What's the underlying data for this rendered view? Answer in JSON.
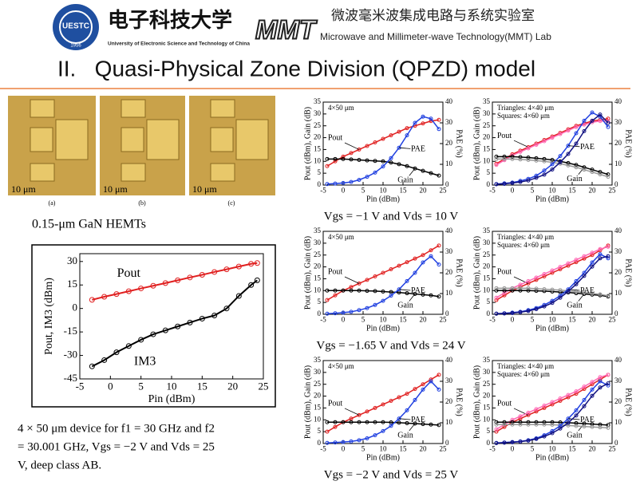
{
  "header": {
    "logo_text": "UESTC",
    "logo_year": "1956",
    "university_cn": "电子科技大学",
    "university_en": "University of Electronic Science and Technology of China",
    "lab_logo": "MMT",
    "lab_cn": "微波毫米波集成电路与系统实验室",
    "lab_en": "Microwave and Millimeter-wave Technology(MMT) Lab"
  },
  "title": "II.   Quasi-Physical Zone Division (QPZD) model",
  "micrographs": [
    {
      "label": "(a)",
      "scale": "10 μm"
    },
    {
      "label": "(b)",
      "scale": "10 μm"
    },
    {
      "label": "(c)",
      "scale": "10 μm"
    }
  ],
  "device_label": "0.15-μm GaN HEMTs",
  "device_note": [
    "4 × 50 μm device for f1 = 30 GHz and f2",
    "= 30.001 GHz, Vgs = −2 V and Vds = 25",
    "V, deep class AB."
  ],
  "bias_captions": [
    "Vgs = −1 V and Vds = 10 V",
    "Vgs = −1.65 V and Vds = 24 V",
    "Vgs = −2 V and Vds = 25 V"
  ],
  "chart_data": [
    {
      "type": "line",
      "xlabel": "Pin (dBm)",
      "ylabel": "Pout, IM3 (dBm)",
      "markers": true,
      "x": [
        -3,
        -1,
        1,
        3,
        5,
        7,
        9,
        11,
        13,
        15,
        17,
        19,
        21,
        23,
        24
      ],
      "xlim": [
        -5,
        25
      ],
      "xticks": [
        -5,
        0,
        5,
        10,
        15,
        20,
        25
      ],
      "ylim": [
        -45,
        35
      ],
      "yticks": [
        -45,
        -30,
        -15,
        0,
        15,
        30
      ],
      "series": [
        {
          "name": "Pout",
          "color": "#e02020",
          "values": [
            5.5,
            7.5,
            9.2,
            11,
            12.8,
            14.5,
            16.2,
            18,
            19.8,
            21.5,
            23.3,
            25,
            26.8,
            28.5,
            29
          ]
        },
        {
          "name": "IM3",
          "color": "#000000",
          "values": [
            -37,
            -33,
            -28,
            -24,
            -20,
            -16.5,
            -14,
            -11.5,
            -9,
            -6.5,
            -4.5,
            0,
            8,
            15,
            18
          ]
        }
      ]
    },
    {
      "type": "line",
      "xlabel": "Pin (dBm)",
      "ylabel": "Pout (dBm), Gain (dB)",
      "y2label": "PAE (%)",
      "markers": true,
      "size_notes": [
        "4×50 μm"
      ],
      "x": [
        -4,
        -2,
        0,
        2,
        4,
        6,
        8,
        10,
        12,
        14,
        16,
        18,
        20,
        22,
        24
      ],
      "xlim": [
        -5,
        25
      ],
      "xticks": [
        -5,
        0,
        5,
        10,
        15,
        20,
        25
      ],
      "ylim": [
        0,
        35
      ],
      "yticks": [
        0,
        5,
        10,
        15,
        20,
        25,
        30,
        35
      ],
      "y2lim": [
        0,
        40
      ],
      "y2ticks": [
        0,
        10,
        20,
        30,
        40
      ],
      "series": [
        {
          "name": "Pout",
          "color": "#e02020",
          "values": [
            8,
            10,
            12,
            13.5,
            15,
            16.5,
            18,
            19.5,
            21,
            22.5,
            24,
            25,
            26,
            27,
            27.5
          ]
        },
        {
          "name": "Gain",
          "color": "#000000",
          "values": [
            11,
            11,
            11,
            10.8,
            10.6,
            10.4,
            10.2,
            10,
            9.5,
            8.8,
            8,
            7,
            6,
            5,
            4
          ]
        },
        {
          "name": "PAE",
          "color": "#2040e0",
          "axis": "y2",
          "values": [
            0.5,
            0.7,
            1,
            1.5,
            2.5,
            4,
            6,
            9,
            13,
            18,
            24,
            30,
            33,
            32,
            27
          ]
        }
      ]
    },
    {
      "type": "line",
      "xlabel": "Pin (dBm)",
      "ylabel": "Pout (dBm), Gain (dB)",
      "y2label": "PAE (%)",
      "markers": true,
      "size_notes": [
        "Triangles: 4×40 μm",
        "Squares: 4×60 μm"
      ],
      "x": [
        -4,
        -2,
        0,
        2,
        4,
        6,
        8,
        10,
        12,
        14,
        16,
        18,
        20,
        22,
        24
      ],
      "xlim": [
        -5,
        25
      ],
      "xticks": [
        -5,
        0,
        5,
        10,
        15,
        20,
        25
      ],
      "ylim": [
        0,
        35
      ],
      "yticks": [
        0,
        5,
        10,
        15,
        20,
        25,
        30,
        35
      ],
      "y2lim": [
        0,
        40
      ],
      "y2ticks": [
        0,
        10,
        20,
        30,
        40
      ],
      "series": [
        {
          "name": "Pout",
          "color": "#e02020",
          "values": [
            9,
            11,
            13,
            14.5,
            16,
            17.5,
            19,
            20.5,
            22,
            23.5,
            25,
            26,
            27,
            27.5,
            28
          ]
        },
        {
          "color": "#ff69b4",
          "values": [
            8.5,
            10.5,
            12.5,
            14,
            15.5,
            17,
            18.5,
            20,
            21.5,
            23,
            24.5,
            25.5,
            26.5,
            27,
            27
          ]
        },
        {
          "name": "Gain",
          "color": "#000000",
          "values": [
            12,
            12,
            12,
            11.8,
            11.6,
            11.3,
            11,
            10.6,
            10,
            9.3,
            8.5,
            7.5,
            6.5,
            5.5,
            4.5
          ]
        },
        {
          "color": "#999999",
          "values": [
            11,
            11,
            11,
            10.8,
            10.6,
            10.3,
            10,
            9.6,
            9,
            8.3,
            7.5,
            6.5,
            5.5,
            4.5,
            3.5
          ]
        },
        {
          "name": "PAE",
          "color": "#2040e0",
          "axis": "y2",
          "values": [
            0.5,
            0.8,
            1.2,
            2,
            3,
            4.5,
            7,
            10,
            14,
            19,
            25,
            31,
            35,
            33,
            28
          ]
        },
        {
          "color": "#101080",
          "axis": "y2",
          "values": [
            0.4,
            0.6,
            1,
            1.5,
            2.2,
            3.5,
            5,
            7.5,
            11,
            15,
            20,
            26,
            31,
            34,
            30
          ]
        }
      ]
    },
    {
      "type": "line",
      "xlabel": "Pin (dBm)",
      "ylabel": "Pout (dBm), Gain (dB)",
      "y2label": "PAE (%)",
      "markers": true,
      "size_notes": [
        "4×50 μm"
      ],
      "x": [
        -4,
        -2,
        0,
        2,
        4,
        6,
        8,
        10,
        12,
        14,
        16,
        18,
        20,
        22,
        24
      ],
      "xlim": [
        -5,
        25
      ],
      "xticks": [
        -5,
        0,
        5,
        10,
        15,
        20,
        25
      ],
      "ylim": [
        0,
        35
      ],
      "yticks": [
        0,
        5,
        10,
        15,
        20,
        25,
        30,
        35
      ],
      "y2lim": [
        0,
        40
      ],
      "y2ticks": [
        0,
        10,
        20,
        30,
        40
      ],
      "series": [
        {
          "name": "Pout",
          "color": "#e02020",
          "values": [
            6,
            8,
            10,
            11.5,
            13,
            14.5,
            16,
            17.5,
            19,
            20.5,
            22,
            23.5,
            25,
            27,
            29
          ]
        },
        {
          "name": "Gain",
          "color": "#000000",
          "values": [
            10,
            10,
            10,
            10,
            10,
            9.9,
            9.8,
            9.6,
            9.4,
            9.2,
            8.9,
            8.6,
            8.3,
            8,
            7.5
          ]
        },
        {
          "name": "PAE",
          "color": "#2040e0",
          "axis": "y2",
          "values": [
            0.3,
            0.5,
            0.8,
            1.2,
            2,
            3,
            4.5,
            6.5,
            9,
            12,
            16,
            20,
            25,
            28,
            24
          ]
        }
      ]
    },
    {
      "type": "line",
      "xlabel": "Pin (dBm)",
      "ylabel": "Pout (dBm), Gain (dB)",
      "y2label": "PAE (%)",
      "markers": true,
      "size_notes": [
        "Triangles: 4×40 μm",
        "Squares: 4×60 μm"
      ],
      "x": [
        -4,
        -2,
        0,
        2,
        4,
        6,
        8,
        10,
        12,
        14,
        16,
        18,
        20,
        22,
        24
      ],
      "xlim": [
        -5,
        25
      ],
      "xticks": [
        -5,
        0,
        5,
        10,
        15,
        20,
        25
      ],
      "ylim": [
        0,
        35
      ],
      "yticks": [
        0,
        5,
        10,
        15,
        20,
        25,
        30,
        35
      ],
      "y2lim": [
        0,
        40
      ],
      "y2ticks": [
        0,
        10,
        20,
        30,
        40
      ],
      "series": [
        {
          "name": "Pout",
          "color": "#e02020",
          "values": [
            6,
            8,
            10,
            11.5,
            13,
            14.5,
            16,
            17.5,
            19,
            20.5,
            22,
            23.5,
            25,
            27,
            29
          ]
        },
        {
          "color": "#ff69b4",
          "values": [
            7,
            9,
            11,
            12.5,
            14,
            15.5,
            17,
            18.5,
            20,
            21.5,
            23,
            24.5,
            26,
            27.5,
            28.5
          ]
        },
        {
          "name": "Gain",
          "color": "#000000",
          "values": [
            10,
            10,
            10,
            10,
            10,
            9.9,
            9.8,
            9.6,
            9.4,
            9.2,
            8.9,
            8.6,
            8.3,
            8,
            7.5
          ]
        },
        {
          "color": "#999999",
          "values": [
            11,
            11,
            11,
            11,
            11,
            10.8,
            10.6,
            10.4,
            10.2,
            9.9,
            9.6,
            9.2,
            8.8,
            8.4,
            7.8
          ]
        },
        {
          "name": "PAE",
          "color": "#2040e0",
          "axis": "y2",
          "values": [
            0.3,
            0.5,
            0.8,
            1.2,
            2,
            3,
            4.5,
            6.5,
            9,
            12,
            16,
            20,
            25,
            29,
            27
          ]
        },
        {
          "color": "#101080",
          "axis": "y2",
          "values": [
            0.3,
            0.4,
            0.6,
            1,
            1.6,
            2.5,
            3.8,
            5.5,
            8,
            11,
            14.5,
            18.5,
            23,
            27,
            28
          ]
        }
      ]
    },
    {
      "type": "line",
      "xlabel": "Pin (dBm)",
      "ylabel": "Pout (dBm), Gain (dB)",
      "y2label": "PAE (%)",
      "markers": true,
      "size_notes": [
        "4×50 μm"
      ],
      "x": [
        -4,
        -2,
        0,
        2,
        4,
        6,
        8,
        10,
        12,
        14,
        16,
        18,
        20,
        22,
        24
      ],
      "xlim": [
        -5,
        25
      ],
      "xticks": [
        -5,
        0,
        5,
        10,
        15,
        20,
        25
      ],
      "ylim": [
        0,
        35
      ],
      "yticks": [
        0,
        5,
        10,
        15,
        20,
        25,
        30,
        35
      ],
      "y2lim": [
        0,
        40
      ],
      "y2ticks": [
        0,
        10,
        20,
        30,
        40
      ],
      "series": [
        {
          "name": "Pout",
          "color": "#e02020",
          "values": [
            5,
            7,
            9,
            10.5,
            12,
            13.5,
            15,
            16.5,
            18,
            19.5,
            21,
            23,
            25,
            27,
            29
          ]
        },
        {
          "name": "Gain",
          "color": "#000000",
          "values": [
            9,
            9,
            9,
            9,
            9,
            9,
            9,
            9,
            8.9,
            8.8,
            8.6,
            8.4,
            8.2,
            8,
            7.8
          ]
        },
        {
          "name": "PAE",
          "color": "#2040e0",
          "axis": "y2",
          "values": [
            0.3,
            0.5,
            0.7,
            1,
            1.6,
            2.5,
            4,
            6,
            8.5,
            12,
            16,
            21,
            26,
            30,
            26
          ]
        }
      ]
    },
    {
      "type": "line",
      "xlabel": "Pin (dBm)",
      "ylabel": "Pout (dBm), Gain (dB)",
      "y2label": "PAE (%)",
      "markers": true,
      "size_notes": [
        "Triangles: 4×40 μm",
        "Squares: 4×60 μm"
      ],
      "x": [
        -4,
        -2,
        0,
        2,
        4,
        6,
        8,
        10,
        12,
        14,
        16,
        18,
        20,
        22,
        24
      ],
      "xlim": [
        -5,
        25
      ],
      "xticks": [
        -5,
        0,
        5,
        10,
        15,
        20,
        25
      ],
      "ylim": [
        0,
        35
      ],
      "yticks": [
        0,
        5,
        10,
        15,
        20,
        25,
        30,
        35
      ],
      "y2lim": [
        0,
        40
      ],
      "y2ticks": [
        0,
        10,
        20,
        30,
        40
      ],
      "series": [
        {
          "name": "Pout",
          "color": "#e02020",
          "values": [
            5,
            7,
            9,
            10.5,
            12,
            13.5,
            15,
            16.5,
            18,
            19.5,
            21,
            23,
            25,
            27,
            29
          ]
        },
        {
          "color": "#ff69b4",
          "values": [
            6,
            8,
            10,
            11.5,
            13,
            14.5,
            16,
            17.5,
            19,
            20.5,
            22,
            24,
            26,
            28,
            29
          ]
        },
        {
          "name": "Gain",
          "color": "#000000",
          "values": [
            9,
            9,
            9,
            9,
            9,
            9,
            9,
            9,
            8.9,
            8.8,
            8.6,
            8.4,
            8.2,
            8,
            7.8
          ]
        },
        {
          "color": "#999999",
          "values": [
            8,
            8,
            8,
            8,
            8,
            8,
            8,
            7.9,
            7.8,
            7.6,
            7.4,
            7.2,
            7,
            6.8,
            6.6
          ]
        },
        {
          "name": "PAE",
          "color": "#2040e0",
          "axis": "y2",
          "values": [
            0.3,
            0.5,
            0.7,
            1,
            1.6,
            2.5,
            4,
            6,
            8.5,
            12,
            16,
            21,
            26,
            30,
            28
          ]
        },
        {
          "color": "#101080",
          "axis": "y2",
          "values": [
            0.2,
            0.4,
            0.6,
            0.9,
            1.4,
            2.2,
            3.4,
            5,
            7.2,
            10,
            13.5,
            18,
            23,
            27,
            29
          ]
        }
      ]
    }
  ]
}
